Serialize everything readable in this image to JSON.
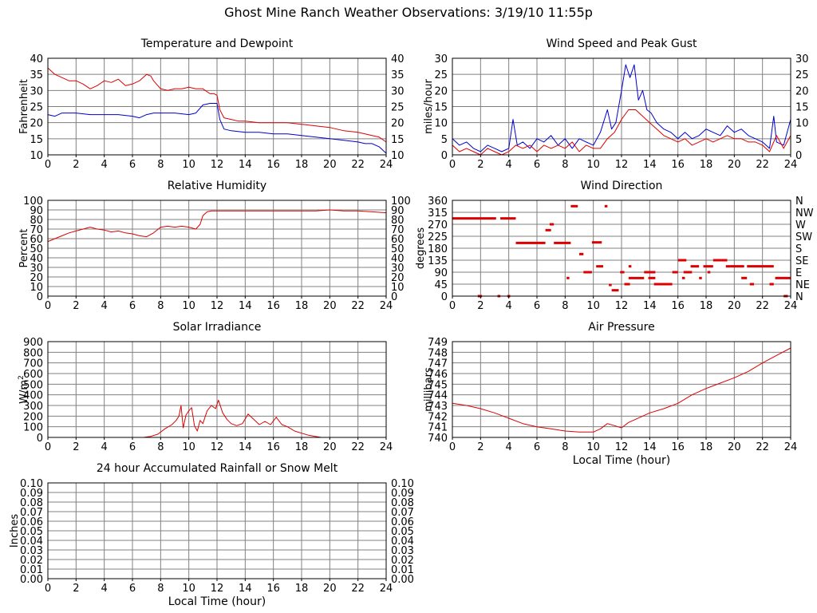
{
  "page_title": "Ghost Mine Ranch Weather Observations: 3/19/10 11:55p",
  "colors": {
    "primary": "#dd0000",
    "secondary": "#0000cc",
    "grid": "#808080",
    "frame": "#000000"
  },
  "chart_data": [
    {
      "id": "temperature",
      "type": "line",
      "title": "Temperature and Dewpoint",
      "ylabel": "Fahrenheit",
      "xlabel": "",
      "xlim": [
        0,
        24
      ],
      "ylim": [
        10,
        40
      ],
      "xticks": [
        "0",
        "2",
        "4",
        "6",
        "8",
        "10",
        "12",
        "14",
        "16",
        "18",
        "20",
        "22",
        "24"
      ],
      "yticks": [
        "10",
        "15",
        "20",
        "25",
        "30",
        "35",
        "40"
      ],
      "right_ticks": [
        "10",
        "15",
        "20",
        "25",
        "30",
        "35",
        "40"
      ],
      "grid": true,
      "series": [
        {
          "color": "#dd0000",
          "x": [
            0,
            0.5,
            1,
            1.5,
            2,
            2.5,
            3,
            3.5,
            4,
            4.5,
            5,
            5.5,
            6,
            6.5,
            7,
            7.3,
            7.5,
            8,
            8.5,
            9,
            9.5,
            10,
            10.5,
            11,
            11.5,
            11.8,
            12,
            12.2,
            12.5,
            13,
            13.5,
            14,
            15,
            16,
            17,
            18,
            19,
            20,
            21,
            22,
            22.5,
            23,
            23.5,
            24
          ],
          "y": [
            37,
            35,
            34,
            33,
            33,
            32,
            30.5,
            31.5,
            33,
            32.5,
            33.5,
            31.5,
            32,
            33,
            35,
            34.5,
            33,
            30.5,
            30,
            30.5,
            30.5,
            31,
            30.5,
            30.5,
            29,
            29,
            28.5,
            24,
            21.5,
            21,
            20.5,
            20.5,
            20,
            20,
            20,
            19.5,
            19,
            18.5,
            17.5,
            17,
            16.5,
            16,
            15.5,
            14
          ]
        },
        {
          "color": "#0000cc",
          "x": [
            0,
            0.5,
            1,
            1.5,
            2,
            3,
            4,
            5,
            6,
            6.5,
            7,
            7.5,
            8,
            9,
            10,
            10.5,
            11,
            11.5,
            12,
            12.2,
            12.5,
            13,
            14,
            15,
            16,
            17,
            18,
            19,
            20,
            21,
            22,
            22.5,
            23,
            23.5,
            24
          ],
          "y": [
            22.5,
            22,
            23,
            23,
            23,
            22.5,
            22.5,
            22.5,
            22,
            21.5,
            22.5,
            23,
            23,
            23,
            22.5,
            23,
            25.5,
            26,
            26,
            21,
            18,
            17.5,
            17,
            17,
            16.5,
            16.5,
            16,
            15.5,
            15,
            14.5,
            14,
            13.5,
            13.5,
            12.5,
            10.5
          ]
        }
      ]
    },
    {
      "id": "wind-speed",
      "type": "line",
      "title": "Wind Speed and Peak Gust",
      "ylabel": "miles/hour",
      "xlabel": "",
      "xlim": [
        0,
        24
      ],
      "ylim": [
        0,
        30
      ],
      "xticks": [
        "0",
        "2",
        "4",
        "6",
        "8",
        "10",
        "12",
        "14",
        "16",
        "18",
        "20",
        "22",
        "24"
      ],
      "yticks": [
        "0",
        "5",
        "10",
        "15",
        "20",
        "25",
        "30"
      ],
      "right_ticks": [
        "0",
        "5",
        "10",
        "15",
        "20",
        "25",
        "30"
      ],
      "grid": true,
      "series": [
        {
          "color": "#0000cc",
          "x": [
            0,
            0.5,
            1,
            1.5,
            2,
            2.5,
            3,
            3.5,
            4,
            4.3,
            4.6,
            5,
            5.5,
            6,
            6.5,
            7,
            7.5,
            8,
            8.5,
            9,
            9.5,
            10,
            10.5,
            11,
            11.3,
            11.6,
            12,
            12.3,
            12.6,
            12.9,
            13.2,
            13.5,
            13.8,
            14.1,
            14.5,
            15,
            15.5,
            16,
            16.5,
            17,
            17.5,
            18,
            18.5,
            19,
            19.5,
            20,
            20.5,
            21,
            21.5,
            22,
            22.5,
            22.8,
            23,
            23.5,
            24
          ],
          "y": [
            5,
            3,
            4,
            2,
            1,
            3,
            2,
            1,
            2,
            11,
            3,
            4,
            2,
            5,
            4,
            6,
            3,
            5,
            2,
            5,
            4,
            3,
            7,
            14,
            8,
            10,
            20,
            28,
            24,
            28,
            17,
            20,
            14,
            13,
            10,
            8,
            7,
            5,
            7,
            5,
            6,
            8,
            7,
            6,
            9,
            7,
            8,
            6,
            5,
            4,
            2,
            12,
            4,
            3,
            11
          ]
        },
        {
          "color": "#dd0000",
          "x": [
            0,
            0.5,
            1,
            1.5,
            2,
            2.5,
            3,
            3.5,
            4,
            4.5,
            5,
            5.5,
            6,
            6.5,
            7,
            7.5,
            8,
            8.5,
            9,
            9.5,
            10,
            10.5,
            11,
            11.5,
            12,
            12.5,
            13,
            13.5,
            14,
            14.5,
            15,
            15.5,
            16,
            16.5,
            17,
            17.5,
            18,
            18.5,
            19,
            19.5,
            20,
            20.5,
            21,
            21.5,
            22,
            22.5,
            23,
            23.5,
            24
          ],
          "y": [
            3,
            1,
            2,
            1,
            0,
            2,
            1,
            0,
            1,
            3,
            2,
            3,
            1,
            3,
            2,
            3,
            2,
            4,
            1,
            3,
            2,
            2,
            5,
            7,
            11,
            14,
            14,
            12,
            10,
            8,
            6,
            5,
            4,
            5,
            3,
            4,
            5,
            4,
            5,
            6,
            5,
            5,
            4,
            4,
            3,
            1,
            6,
            2,
            6
          ]
        }
      ]
    },
    {
      "id": "humidity",
      "type": "line",
      "title": "Relative Humidity",
      "ylabel": "Percent",
      "xlabel": "",
      "xlim": [
        0,
        24
      ],
      "ylim": [
        0,
        100
      ],
      "xticks": [
        "0",
        "2",
        "4",
        "6",
        "8",
        "10",
        "12",
        "14",
        "16",
        "18",
        "20",
        "22",
        "24"
      ],
      "yticks": [
        "0",
        "10",
        "20",
        "30",
        "40",
        "50",
        "60",
        "70",
        "80",
        "90",
        "100"
      ],
      "right_ticks": [
        "0",
        "10",
        "20",
        "30",
        "40",
        "50",
        "60",
        "70",
        "80",
        "90",
        "100"
      ],
      "grid": true,
      "series": [
        {
          "color": "#dd0000",
          "x": [
            0,
            0.5,
            1,
            1.5,
            2,
            2.5,
            3,
            3.5,
            4,
            4.5,
            5,
            5.5,
            6,
            6.5,
            7,
            7.5,
            8,
            8.5,
            9,
            9.5,
            10,
            10.5,
            10.8,
            11,
            11.3,
            11.6,
            12,
            13,
            14,
            15,
            16,
            17,
            18,
            19,
            20,
            21,
            22,
            23,
            24
          ],
          "y": [
            57,
            60,
            63,
            66,
            68,
            70,
            72,
            70,
            69,
            67,
            68,
            66,
            65,
            63,
            62,
            66,
            72,
            73,
            72,
            73,
            72,
            70,
            75,
            84,
            88,
            89,
            89,
            89,
            89,
            89,
            89,
            89,
            89,
            89,
            90,
            89,
            89,
            88,
            87
          ]
        }
      ]
    },
    {
      "id": "wind-direction",
      "type": "scatter",
      "title": "Wind Direction",
      "ylabel": "degrees",
      "xlabel": "",
      "xlim": [
        0,
        24
      ],
      "ylim": [
        0,
        360
      ],
      "xticks": [
        "0",
        "2",
        "4",
        "6",
        "8",
        "10",
        "12",
        "14",
        "16",
        "18",
        "20",
        "22",
        "24"
      ],
      "yticks": [
        "0",
        "45",
        "90",
        "135",
        "180",
        "225",
        "270",
        "315",
        "360"
      ],
      "right_ticks": [
        "N",
        "NE",
        "E",
        "SE",
        "S",
        "SW",
        "W",
        "NW",
        "N"
      ],
      "grid": true,
      "series": [
        {
          "color": "#dd0000",
          "segments": [
            [
              0,
              3.1,
              292
            ],
            [
              3.4,
              4.5,
              292
            ],
            [
              4.5,
              6.6,
              200
            ],
            [
              6.6,
              7,
              248
            ],
            [
              6.9,
              7.2,
              270
            ],
            [
              7.2,
              8.4,
              200
            ],
            [
              8.4,
              8.9,
              338
            ],
            [
              9,
              9.3,
              158
            ],
            [
              9.3,
              9.9,
              90
            ],
            [
              9.9,
              10.6,
              202
            ],
            [
              10.2,
              10.7,
              112
            ],
            [
              10.8,
              11,
              338
            ],
            [
              11.1,
              11.3,
              42
            ],
            [
              11.3,
              11.8,
              22
            ],
            [
              11.9,
              12.2,
              90
            ],
            [
              12.2,
              12.6,
              45
            ],
            [
              12.5,
              13.6,
              68
            ],
            [
              13.6,
              14.4,
              90
            ],
            [
              13.9,
              14.4,
              68
            ],
            [
              14.3,
              15.6,
              45
            ],
            [
              15.6,
              16,
              90
            ],
            [
              16,
              16.6,
              135
            ],
            [
              16.4,
              17,
              90
            ],
            [
              16.9,
              17.5,
              112
            ],
            [
              17.5,
              17.7,
              68
            ],
            [
              17.8,
              18.5,
              112
            ],
            [
              18.5,
              19.5,
              135
            ],
            [
              19.4,
              19.7,
              112
            ],
            [
              19.7,
              20.7,
              112
            ],
            [
              20.5,
              20.9,
              68
            ],
            [
              20.9,
              22.8,
              112
            ],
            [
              21.1,
              21.4,
              45
            ],
            [
              22.5,
              22.8,
              45
            ],
            [
              22.9,
              24,
              68
            ],
            [
              1.8,
              2.1,
              0
            ],
            [
              3.2,
              3.4,
              0
            ],
            [
              3.9,
              4.1,
              0
            ],
            [
              8.1,
              8.3,
              68
            ],
            [
              12.5,
              12.7,
              112
            ],
            [
              16.3,
              16.5,
              68
            ],
            [
              18.1,
              18.3,
              90
            ],
            [
              23.5,
              23.8,
              0
            ]
          ]
        }
      ]
    },
    {
      "id": "solar",
      "type": "line",
      "title": "Solar Irradiance",
      "ylabel": "W/m2",
      "xlabel": "",
      "xlim": [
        0,
        24
      ],
      "ylim": [
        0,
        900
      ],
      "xticks": [
        "0",
        "2",
        "4",
        "6",
        "8",
        "10",
        "12",
        "14",
        "16",
        "18",
        "20",
        "22",
        "24"
      ],
      "yticks": [
        "0",
        "100",
        "200",
        "300",
        "400",
        "500",
        "600",
        "700",
        "800",
        "900"
      ],
      "right_ticks": [],
      "grid": true,
      "series": [
        {
          "color": "#dd0000",
          "x": [
            0,
            6.8,
            7.3,
            7.8,
            8.3,
            8.8,
            9.1,
            9.3,
            9.45,
            9.6,
            9.8,
            10,
            10.2,
            10.4,
            10.6,
            10.8,
            11,
            11.3,
            11.6,
            11.9,
            12.1,
            12.4,
            12.7,
            13,
            13.4,
            13.8,
            14.2,
            14.6,
            15,
            15.4,
            15.8,
            16.2,
            16.6,
            17,
            17.5,
            18,
            18.5,
            19,
            19.4,
            24
          ],
          "y": [
            0,
            0,
            10,
            30,
            80,
            120,
            160,
            200,
            300,
            90,
            210,
            250,
            280,
            110,
            60,
            160,
            130,
            250,
            300,
            270,
            350,
            230,
            170,
            130,
            110,
            130,
            220,
            170,
            120,
            150,
            120,
            190,
            120,
            100,
            60,
            40,
            20,
            8,
            0,
            0
          ]
        }
      ]
    },
    {
      "id": "pressure",
      "type": "line",
      "title": "Air Pressure",
      "ylabel": "millibars",
      "xlabel": "Local Time (hour)",
      "xlim": [
        0,
        24
      ],
      "ylim": [
        740,
        749
      ],
      "xticks": [
        "0",
        "2",
        "4",
        "6",
        "8",
        "10",
        "12",
        "14",
        "16",
        "18",
        "20",
        "22",
        "24"
      ],
      "yticks": [
        "740",
        "741",
        "742",
        "743",
        "744",
        "745",
        "746",
        "747",
        "748",
        "749"
      ],
      "right_ticks": [],
      "grid": true,
      "series": [
        {
          "color": "#dd0000",
          "x": [
            0,
            1,
            2,
            3,
            4,
            5,
            6,
            7,
            8,
            9,
            10,
            10.5,
            11,
            11.5,
            12,
            12.5,
            13,
            14,
            15,
            16,
            17,
            18,
            19,
            20,
            21,
            22,
            23,
            24
          ],
          "y": [
            743.2,
            743,
            742.7,
            742.3,
            741.8,
            741.3,
            741,
            740.8,
            740.6,
            740.5,
            740.5,
            740.8,
            741.3,
            741.1,
            740.9,
            741.4,
            741.7,
            742.3,
            742.7,
            743.2,
            744,
            744.6,
            745.1,
            745.6,
            746.2,
            747,
            747.7,
            748.4
          ]
        }
      ]
    },
    {
      "id": "rainfall",
      "type": "line",
      "title": "24 hour Accumulated Rainfall or Snow Melt",
      "ylabel": "Inches",
      "xlabel": "Local Time (hour)",
      "xlim": [
        0,
        24
      ],
      "ylim": [
        0,
        0.1
      ],
      "xticks": [
        "0",
        "2",
        "4",
        "6",
        "8",
        "10",
        "12",
        "14",
        "16",
        "18",
        "20",
        "22",
        "24"
      ],
      "yticks": [
        "0.00",
        "0.01",
        "0.02",
        "0.03",
        "0.04",
        "0.05",
        "0.06",
        "0.07",
        "0.08",
        "0.09",
        "0.10"
      ],
      "right_ticks": [
        "0.00",
        "0.01",
        "0.02",
        "0.03",
        "0.04",
        "0.05",
        "0.06",
        "0.07",
        "0.08",
        "0.09",
        "0.10"
      ],
      "grid": true,
      "series": [
        {
          "color": "#dd0000",
          "x": [
            0,
            24
          ],
          "y": [
            0,
            0
          ]
        }
      ]
    }
  ]
}
